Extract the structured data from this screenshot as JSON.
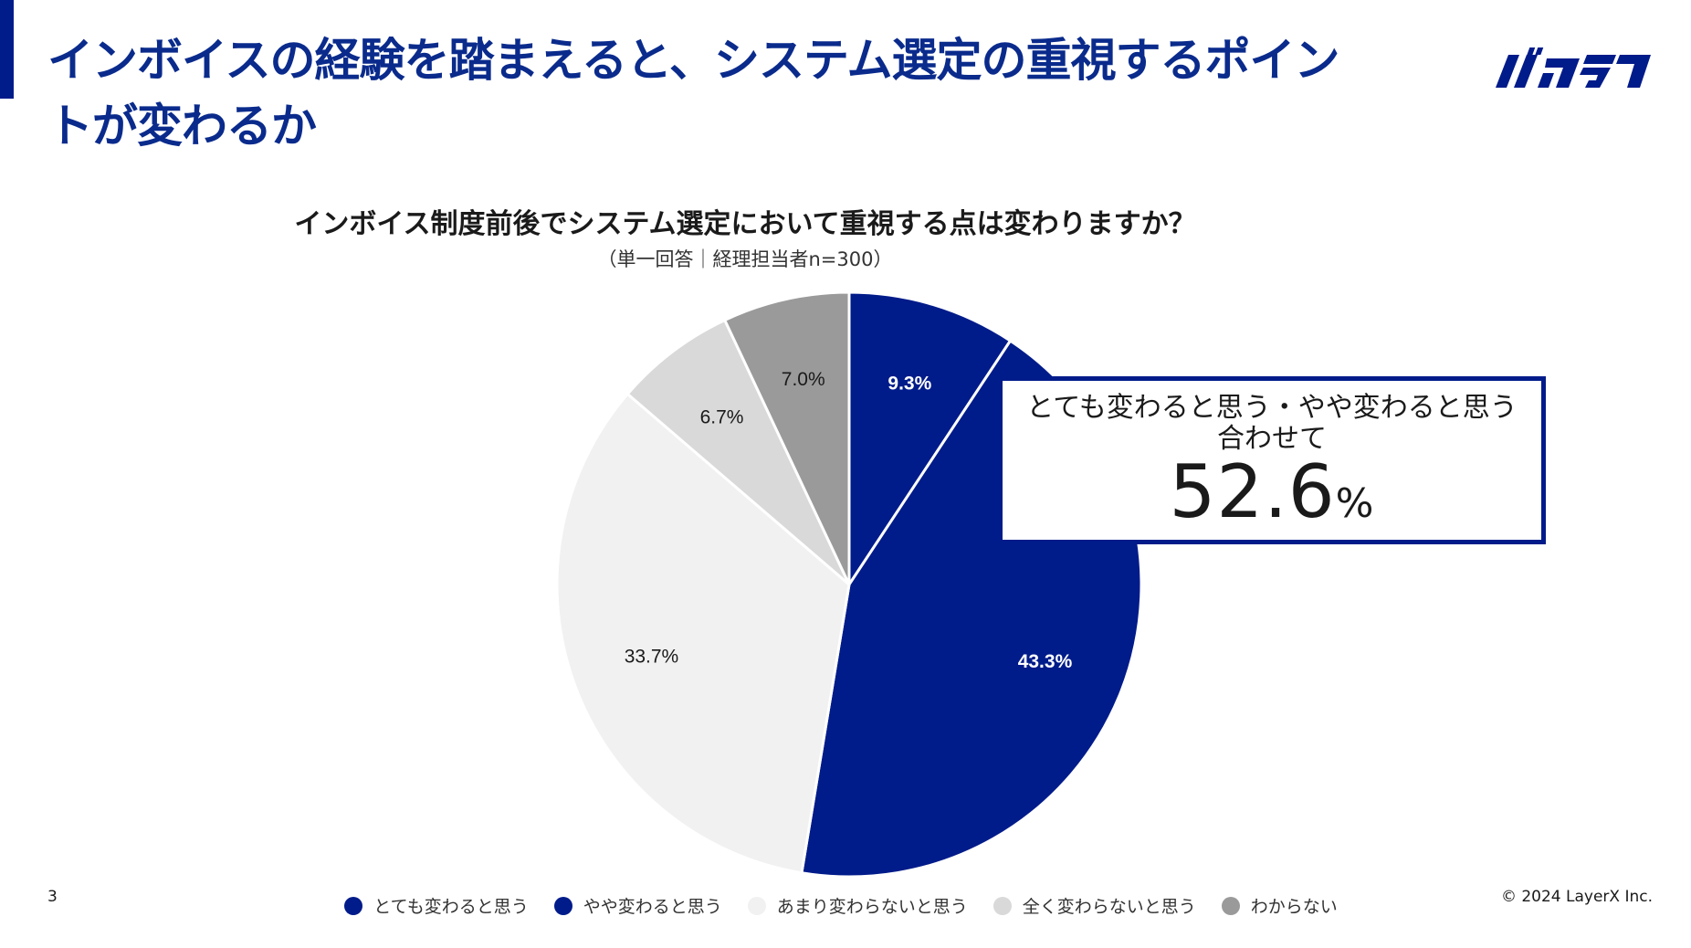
{
  "slide": {
    "title": "インボイスの経験を踏まえると、システム選定の重視するポイントが変わるか",
    "logo_text": "バクラク",
    "page_number": "3",
    "copyright": "© 2024 LayerX Inc."
  },
  "callout": {
    "line1": "とても変わると思う・やや変わると思う",
    "line2": "合わせて",
    "value": "52.6",
    "unit": "%"
  },
  "colors": {
    "accent": "#001b8a",
    "title": "#0a2b8c"
  },
  "chart_data": {
    "type": "pie",
    "title": "インボイス制度前後でシステム選定において重視する点は変わりますか？",
    "subtitle": "（単一回答｜経理担当者n=300）",
    "start": "12 o'clock, clockwise",
    "slices": [
      {
        "label": "とても変わると思う",
        "value": 9.3,
        "display": "9.3%",
        "color": "#001b8a",
        "label_color": "#ffffff"
      },
      {
        "label": "やや変わると思う",
        "value": 43.3,
        "display": "43.3%",
        "color": "#001b8a",
        "label_color": "#ffffff"
      },
      {
        "label": "あまり変わらないと思う",
        "value": 33.7,
        "display": "33.7%",
        "color": "#f1f1f1",
        "label_color": "#1a1a1a"
      },
      {
        "label": "全く変わらないと思う",
        "value": 6.7,
        "display": "6.7%",
        "color": "#d9d9d9",
        "label_color": "#1a1a1a"
      },
      {
        "label": "わからない",
        "value": 7.0,
        "display": "7.0%",
        "color": "#9a9a9a",
        "label_color": "#1a1a1a"
      }
    ],
    "legend_position": "bottom"
  }
}
